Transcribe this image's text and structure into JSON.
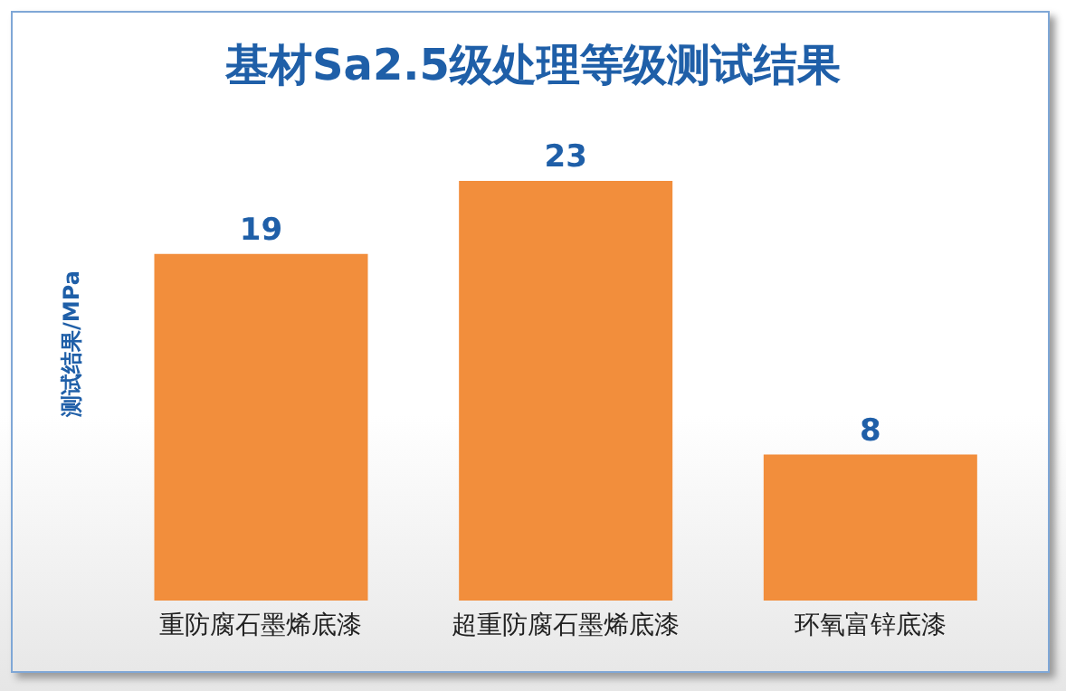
{
  "chart_data": {
    "type": "bar",
    "title": "基材Sa2.5级处理等级测试结果",
    "ylabel": "测试结果/MPa",
    "categories": [
      "重防腐石墨烯底漆",
      "超重防腐石墨烯底漆",
      "环氧富锌底漆"
    ],
    "values": [
      19,
      23,
      8
    ],
    "color": "#f28e3c",
    "data_labels": true,
    "grid": false,
    "legend": false
  }
}
